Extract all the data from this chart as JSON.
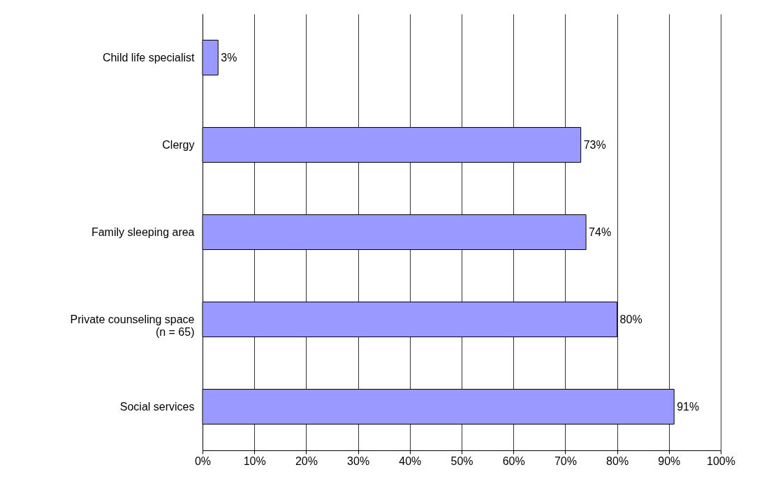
{
  "chart_data": {
    "type": "bar",
    "orientation": "horizontal",
    "categories": [
      "Child life specialist",
      "Clergy",
      "Family sleeping area",
      "Private counseling space\n(n = 65)",
      "Social services"
    ],
    "values": [
      3,
      73,
      74,
      80,
      91
    ],
    "value_labels": [
      "3%",
      "73%",
      "74%",
      "80%",
      "91%"
    ],
    "color": "#9999ff",
    "xlim": [
      0,
      100
    ],
    "xticks": [
      {
        "value": 0,
        "label": "0%"
      },
      {
        "value": 10,
        "label": "10%"
      },
      {
        "value": 20,
        "label": "20%"
      },
      {
        "value": 30,
        "label": "30%"
      },
      {
        "value": 40,
        "label": "40%"
      },
      {
        "value": 50,
        "label": "50%"
      },
      {
        "value": 60,
        "label": "60%"
      },
      {
        "value": 70,
        "label": "70%"
      },
      {
        "value": 80,
        "label": "80%"
      },
      {
        "value": 90,
        "label": "90%"
      },
      {
        "value": 100,
        "label": "100%"
      }
    ],
    "grid": "x"
  }
}
